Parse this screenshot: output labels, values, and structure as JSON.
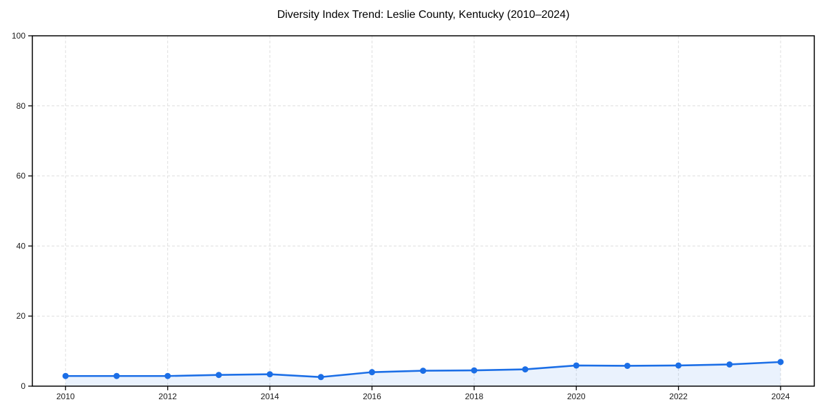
{
  "chart_data": {
    "type": "line",
    "title": "Diversity Index Trend: Leslie County, Kentucky (2010–2024)",
    "xlabel": "",
    "ylabel": "",
    "x": [
      2010,
      2011,
      2012,
      2013,
      2014,
      2015,
      2016,
      2017,
      2018,
      2019,
      2020,
      2021,
      2022,
      2023,
      2024
    ],
    "series": [
      {
        "name": "Diversity Index",
        "values": [
          2.9,
          2.9,
          2.9,
          3.2,
          3.4,
          2.6,
          4.0,
          4.4,
          4.5,
          4.8,
          5.9,
          5.8,
          5.9,
          6.2,
          6.9
        ]
      }
    ],
    "ylim": [
      0,
      100
    ],
    "xlim": [
      2009.35,
      2024.66
    ],
    "yticks": [
      0,
      20,
      40,
      60,
      80,
      100
    ],
    "xticks": [
      2010,
      2012,
      2014,
      2016,
      2018,
      2020,
      2022,
      2024
    ],
    "grid": true,
    "grid_style": "dashed",
    "legend": "none",
    "marker": "circle",
    "area_fill": true,
    "colors": {
      "line": "#1b6ee6",
      "marker": "#1b6ee6",
      "area": "rgba(27,110,230,0.09)",
      "grid": "#dedede",
      "axis": "#000000",
      "tick_label": "#1a1a1a",
      "title": "#000000",
      "background": "#ffffff"
    }
  }
}
